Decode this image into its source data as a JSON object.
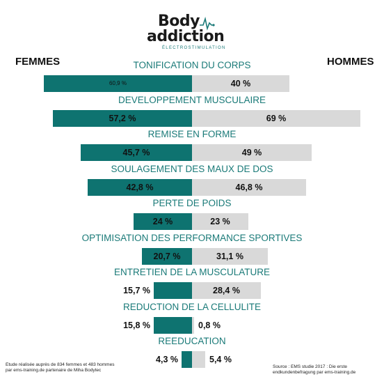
{
  "logo": {
    "line1": "Body",
    "line2": "addiction",
    "subtitle": "ÉLECTROSTIMULATION",
    "colors": {
      "text": "#1a1a1a",
      "accent": "#1a7a78"
    }
  },
  "chart_data": {
    "type": "bar",
    "orientation": "horizontal-diverging",
    "categories": [
      "TONIFICATION DU CORPS",
      "DEVELOPPEMENT MUSCULAIRE",
      "REMISE EN FORME",
      "SOULAGEMENT DES MAUX DE DOS",
      "PERTE DE POIDS",
      "OPTIMISATION DES PERFORMANCE SPORTIVES",
      "ENTRETIEN DE LA MUSCULATURE",
      "REDUCTION DE LA CELLULITE",
      "REEDUCATION"
    ],
    "series": [
      {
        "name": "FEMMES",
        "color": "#0e7370",
        "values": [
          60.9,
          57.2,
          45.7,
          42.8,
          24,
          20.7,
          15.7,
          15.8,
          4.3
        ],
        "labels": [
          "60,9 %",
          "57,2 %",
          "45,7 %",
          "42,8 %",
          "24 %",
          "20,7 %",
          "15,7 %",
          "15,8 %",
          "4,3 %"
        ]
      },
      {
        "name": "HOMMES",
        "color": "#d9d9d9",
        "values": [
          40,
          69,
          49,
          46.8,
          23,
          31.1,
          28.4,
          0.8,
          5.4
        ],
        "labels": [
          "40 %",
          "69 %",
          "49 %",
          "46,8 %",
          "23 %",
          "31,1 %",
          "28,4 %",
          "0,8 %",
          "5,4 %"
        ]
      }
    ],
    "title_color": "#1a7a78",
    "legend_left": "FEMMES",
    "legend_right": "HOMMES",
    "grid": false
  },
  "footnotes": {
    "left": "Etude réalisée auprès de 834 femmes et 483 hommes par ems-training.de partenaire de Miha Bodytec",
    "right": "Source : EMS studie 2017 : Die erste endkundenbefragung par ems-training.de"
  }
}
